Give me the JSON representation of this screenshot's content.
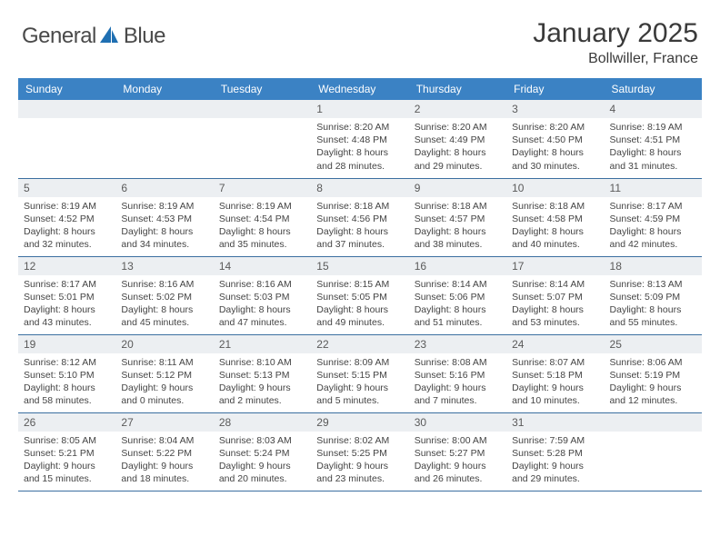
{
  "logo": {
    "text_left": "General",
    "text_right": "Blue",
    "icon_name": "sail-icon",
    "icon_color": "#1f6fb2"
  },
  "title": {
    "month": "January 2025",
    "location": "Bollwiller, France"
  },
  "colors": {
    "header_bg": "#3b82c4",
    "header_fg": "#ffffff",
    "daynum_bg": "#eceff2",
    "rule": "#3b6fa0"
  },
  "day_labels": [
    "Sunday",
    "Monday",
    "Tuesday",
    "Wednesday",
    "Thursday",
    "Friday",
    "Saturday"
  ],
  "weeks": [
    [
      {
        "n": "",
        "lines": []
      },
      {
        "n": "",
        "lines": []
      },
      {
        "n": "",
        "lines": []
      },
      {
        "n": "1",
        "lines": [
          "Sunrise: 8:20 AM",
          "Sunset: 4:48 PM",
          "Daylight: 8 hours",
          "and 28 minutes."
        ]
      },
      {
        "n": "2",
        "lines": [
          "Sunrise: 8:20 AM",
          "Sunset: 4:49 PM",
          "Daylight: 8 hours",
          "and 29 minutes."
        ]
      },
      {
        "n": "3",
        "lines": [
          "Sunrise: 8:20 AM",
          "Sunset: 4:50 PM",
          "Daylight: 8 hours",
          "and 30 minutes."
        ]
      },
      {
        "n": "4",
        "lines": [
          "Sunrise: 8:19 AM",
          "Sunset: 4:51 PM",
          "Daylight: 8 hours",
          "and 31 minutes."
        ]
      }
    ],
    [
      {
        "n": "5",
        "lines": [
          "Sunrise: 8:19 AM",
          "Sunset: 4:52 PM",
          "Daylight: 8 hours",
          "and 32 minutes."
        ]
      },
      {
        "n": "6",
        "lines": [
          "Sunrise: 8:19 AM",
          "Sunset: 4:53 PM",
          "Daylight: 8 hours",
          "and 34 minutes."
        ]
      },
      {
        "n": "7",
        "lines": [
          "Sunrise: 8:19 AM",
          "Sunset: 4:54 PM",
          "Daylight: 8 hours",
          "and 35 minutes."
        ]
      },
      {
        "n": "8",
        "lines": [
          "Sunrise: 8:18 AM",
          "Sunset: 4:56 PM",
          "Daylight: 8 hours",
          "and 37 minutes."
        ]
      },
      {
        "n": "9",
        "lines": [
          "Sunrise: 8:18 AM",
          "Sunset: 4:57 PM",
          "Daylight: 8 hours",
          "and 38 minutes."
        ]
      },
      {
        "n": "10",
        "lines": [
          "Sunrise: 8:18 AM",
          "Sunset: 4:58 PM",
          "Daylight: 8 hours",
          "and 40 minutes."
        ]
      },
      {
        "n": "11",
        "lines": [
          "Sunrise: 8:17 AM",
          "Sunset: 4:59 PM",
          "Daylight: 8 hours",
          "and 42 minutes."
        ]
      }
    ],
    [
      {
        "n": "12",
        "lines": [
          "Sunrise: 8:17 AM",
          "Sunset: 5:01 PM",
          "Daylight: 8 hours",
          "and 43 minutes."
        ]
      },
      {
        "n": "13",
        "lines": [
          "Sunrise: 8:16 AM",
          "Sunset: 5:02 PM",
          "Daylight: 8 hours",
          "and 45 minutes."
        ]
      },
      {
        "n": "14",
        "lines": [
          "Sunrise: 8:16 AM",
          "Sunset: 5:03 PM",
          "Daylight: 8 hours",
          "and 47 minutes."
        ]
      },
      {
        "n": "15",
        "lines": [
          "Sunrise: 8:15 AM",
          "Sunset: 5:05 PM",
          "Daylight: 8 hours",
          "and 49 minutes."
        ]
      },
      {
        "n": "16",
        "lines": [
          "Sunrise: 8:14 AM",
          "Sunset: 5:06 PM",
          "Daylight: 8 hours",
          "and 51 minutes."
        ]
      },
      {
        "n": "17",
        "lines": [
          "Sunrise: 8:14 AM",
          "Sunset: 5:07 PM",
          "Daylight: 8 hours",
          "and 53 minutes."
        ]
      },
      {
        "n": "18",
        "lines": [
          "Sunrise: 8:13 AM",
          "Sunset: 5:09 PM",
          "Daylight: 8 hours",
          "and 55 minutes."
        ]
      }
    ],
    [
      {
        "n": "19",
        "lines": [
          "Sunrise: 8:12 AM",
          "Sunset: 5:10 PM",
          "Daylight: 8 hours",
          "and 58 minutes."
        ]
      },
      {
        "n": "20",
        "lines": [
          "Sunrise: 8:11 AM",
          "Sunset: 5:12 PM",
          "Daylight: 9 hours",
          "and 0 minutes."
        ]
      },
      {
        "n": "21",
        "lines": [
          "Sunrise: 8:10 AM",
          "Sunset: 5:13 PM",
          "Daylight: 9 hours",
          "and 2 minutes."
        ]
      },
      {
        "n": "22",
        "lines": [
          "Sunrise: 8:09 AM",
          "Sunset: 5:15 PM",
          "Daylight: 9 hours",
          "and 5 minutes."
        ]
      },
      {
        "n": "23",
        "lines": [
          "Sunrise: 8:08 AM",
          "Sunset: 5:16 PM",
          "Daylight: 9 hours",
          "and 7 minutes."
        ]
      },
      {
        "n": "24",
        "lines": [
          "Sunrise: 8:07 AM",
          "Sunset: 5:18 PM",
          "Daylight: 9 hours",
          "and 10 minutes."
        ]
      },
      {
        "n": "25",
        "lines": [
          "Sunrise: 8:06 AM",
          "Sunset: 5:19 PM",
          "Daylight: 9 hours",
          "and 12 minutes."
        ]
      }
    ],
    [
      {
        "n": "26",
        "lines": [
          "Sunrise: 8:05 AM",
          "Sunset: 5:21 PM",
          "Daylight: 9 hours",
          "and 15 minutes."
        ]
      },
      {
        "n": "27",
        "lines": [
          "Sunrise: 8:04 AM",
          "Sunset: 5:22 PM",
          "Daylight: 9 hours",
          "and 18 minutes."
        ]
      },
      {
        "n": "28",
        "lines": [
          "Sunrise: 8:03 AM",
          "Sunset: 5:24 PM",
          "Daylight: 9 hours",
          "and 20 minutes."
        ]
      },
      {
        "n": "29",
        "lines": [
          "Sunrise: 8:02 AM",
          "Sunset: 5:25 PM",
          "Daylight: 9 hours",
          "and 23 minutes."
        ]
      },
      {
        "n": "30",
        "lines": [
          "Sunrise: 8:00 AM",
          "Sunset: 5:27 PM",
          "Daylight: 9 hours",
          "and 26 minutes."
        ]
      },
      {
        "n": "31",
        "lines": [
          "Sunrise: 7:59 AM",
          "Sunset: 5:28 PM",
          "Daylight: 9 hours",
          "and 29 minutes."
        ]
      },
      {
        "n": "",
        "lines": []
      }
    ]
  ]
}
